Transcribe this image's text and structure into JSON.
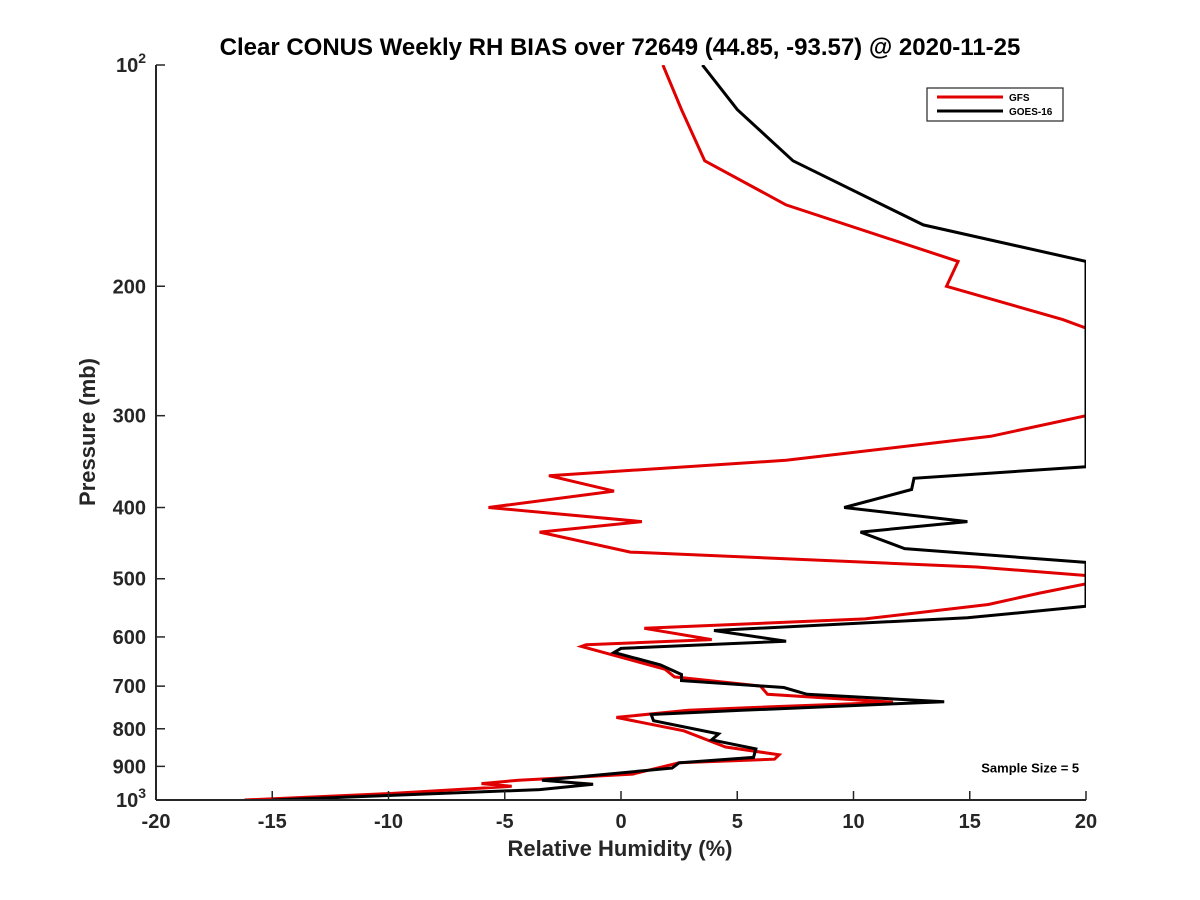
{
  "chart_data": {
    "type": "line",
    "title": "Clear CONUS Weekly RH BIAS over 72649 (44.85, -93.57) @ 2020-11-25",
    "xlabel": "Relative Humidity (%)",
    "ylabel": "Pressure (mb)",
    "xlim": [
      -20,
      20
    ],
    "ylim": [
      100,
      1000
    ],
    "y_scale": "log",
    "y_reversed": true,
    "x_ticks": [
      -20,
      -15,
      -10,
      -5,
      0,
      5,
      10,
      15,
      20
    ],
    "y_ticks": [
      {
        "value": 100,
        "label": "10",
        "sup": "2"
      },
      {
        "value": 200,
        "label": "200",
        "sup": ""
      },
      {
        "value": 300,
        "label": "300",
        "sup": ""
      },
      {
        "value": 400,
        "label": "400",
        "sup": ""
      },
      {
        "value": 500,
        "label": "500",
        "sup": ""
      },
      {
        "value": 600,
        "label": "600",
        "sup": ""
      },
      {
        "value": 700,
        "label": "700",
        "sup": ""
      },
      {
        "value": 800,
        "label": "800",
        "sup": ""
      },
      {
        "value": 900,
        "label": "900",
        "sup": ""
      },
      {
        "value": 1000,
        "label": "10",
        "sup": "3"
      }
    ],
    "grid": false,
    "legend_position": "top-right",
    "series": [
      {
        "name": "GFS",
        "color": "#e00000",
        "points": [
          [
            1.8,
            100
          ],
          [
            2.6,
            115
          ],
          [
            3.6,
            135
          ],
          [
            7.1,
            155
          ],
          [
            14.5,
            185
          ],
          [
            14.0,
            200
          ],
          [
            19.0,
            222
          ],
          [
            20.0,
            228
          ],
          [
            20.0,
            300
          ],
          [
            15.9,
            320
          ],
          [
            7.1,
            345
          ],
          [
            -3.1,
            362
          ],
          [
            -0.3,
            380
          ],
          [
            -5.7,
            400
          ],
          [
            0.9,
            418
          ],
          [
            -3.5,
            432
          ],
          [
            0.4,
            460
          ],
          [
            15.3,
            482
          ],
          [
            20.0,
            495
          ],
          [
            20.0,
            508
          ],
          [
            18.0,
            523
          ],
          [
            15.8,
            542
          ],
          [
            10.5,
            567
          ],
          [
            1.0,
            584
          ],
          [
            3.9,
            605
          ],
          [
            -1.5,
            615
          ],
          [
            -1.7,
            618
          ],
          [
            1.9,
            664
          ],
          [
            2.3,
            680
          ],
          [
            6.0,
            700
          ],
          [
            6.3,
            718
          ],
          [
            11.7,
            736
          ],
          [
            4.9,
            750
          ],
          [
            2.9,
            755
          ],
          [
            -0.2,
            772
          ],
          [
            2.7,
            805
          ],
          [
            4.5,
            847
          ],
          [
            6.8,
            868
          ],
          [
            6.6,
            880
          ],
          [
            2.5,
            890
          ],
          [
            0.5,
            922
          ],
          [
            -4.4,
            940
          ],
          [
            -6.0,
            950
          ],
          [
            -4.7,
            958
          ],
          [
            -10.0,
            980
          ],
          [
            -16.2,
            1000
          ]
        ]
      },
      {
        "name": "GOES-16",
        "color": "#000000",
        "points": [
          [
            3.5,
            100
          ],
          [
            5.0,
            115
          ],
          [
            7.4,
            135
          ],
          [
            13.0,
            165
          ],
          [
            20.0,
            185
          ],
          [
            20.0,
            352
          ],
          [
            12.6,
            365
          ],
          [
            12.5,
            378
          ],
          [
            9.6,
            400
          ],
          [
            14.9,
            418
          ],
          [
            10.3,
            432
          ],
          [
            12.2,
            455
          ],
          [
            20.0,
            475
          ],
          [
            20.0,
            545
          ],
          [
            14.9,
            565
          ],
          [
            4.0,
            588
          ],
          [
            7.1,
            608
          ],
          [
            0.0,
            622
          ],
          [
            -0.3,
            630
          ],
          [
            1.7,
            655
          ],
          [
            2.6,
            675
          ],
          [
            2.6,
            688
          ],
          [
            7.0,
            703
          ],
          [
            8.0,
            718
          ],
          [
            13.9,
            735
          ],
          [
            5.2,
            755
          ],
          [
            1.3,
            765
          ],
          [
            1.4,
            780
          ],
          [
            4.2,
            813
          ],
          [
            3.9,
            828
          ],
          [
            4.2,
            832
          ],
          [
            5.8,
            852
          ],
          [
            5.7,
            875
          ],
          [
            2.5,
            890
          ],
          [
            2.2,
            905
          ],
          [
            -3.4,
            940
          ],
          [
            -1.2,
            952
          ],
          [
            -3.5,
            968
          ],
          [
            -15.0,
            1000
          ]
        ]
      }
    ],
    "annotations": [
      {
        "text": "Sample Size = 5",
        "x": 17.6,
        "y": 900
      }
    ]
  }
}
